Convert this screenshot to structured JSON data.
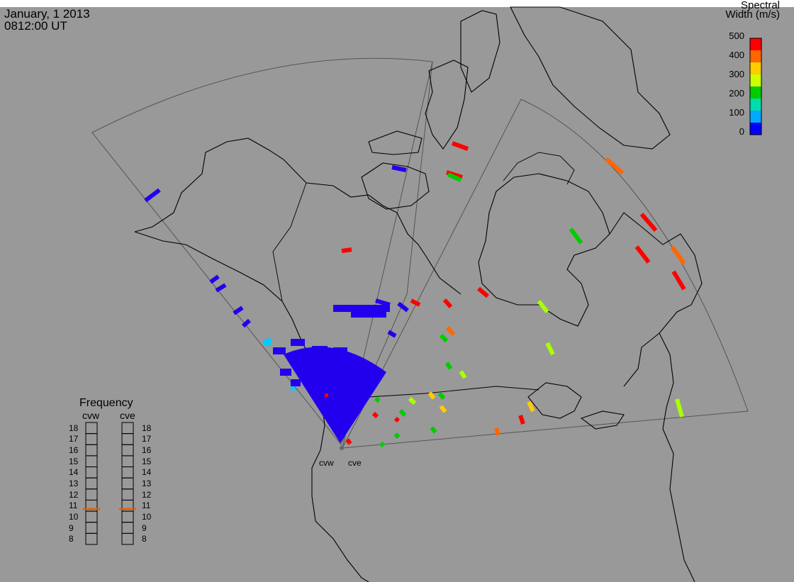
{
  "header": {
    "date": "January, 1 2013",
    "time": "0812:00 UT"
  },
  "colorbar": {
    "title_line1": "Spectral",
    "title_line2": "Width (m/s)",
    "ticks": [
      "500",
      "400",
      "300",
      "200",
      "100",
      "0"
    ],
    "colors": [
      "#ff0000",
      "#ff6600",
      "#ffcc00",
      "#ccff00",
      "#00cc00",
      "#00ddaa",
      "#00aaff",
      "#0000ff"
    ]
  },
  "frequency": {
    "title": "Frequency",
    "columns": [
      "cvw",
      "cve"
    ],
    "levels": [
      "18",
      "17",
      "16",
      "15",
      "14",
      "13",
      "12",
      "11",
      "10",
      "9",
      "8"
    ],
    "cvw_value": 10.7,
    "cve_value": 10.7,
    "marker_color": "#e85a00"
  },
  "stations": {
    "cvw": "cvw",
    "cve": "cve"
  }
}
